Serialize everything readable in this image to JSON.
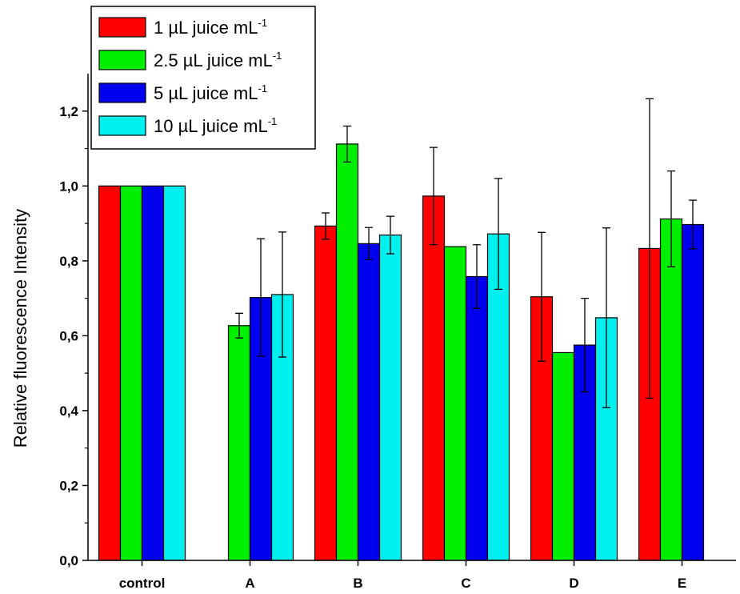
{
  "chart_data": {
    "type": "bar",
    "title": "",
    "xlabel": "",
    "ylabel": "Relative fluorescence Intensity",
    "ylim": [
      0.0,
      1.3
    ],
    "y_ticks": [
      "0,0",
      "0,2",
      "0,4",
      "0,6",
      "0,8",
      "1,0",
      "1,2"
    ],
    "categories": [
      "control",
      "A",
      "B",
      "C",
      "D",
      "E"
    ],
    "legend_position": "top-left",
    "grid": false,
    "series": [
      {
        "name": "1 µL juice mL-1",
        "color": "#ff0000",
        "values": [
          1.0,
          null,
          0.893,
          0.973,
          0.704,
          0.833
        ],
        "errors": [
          0,
          null,
          0.035,
          0.13,
          0.172,
          0.4
        ]
      },
      {
        "name": "2.5 µL juice mL-1",
        "color": "#00ee00",
        "values": [
          1.0,
          0.627,
          1.112,
          0.838,
          0.555,
          0.912
        ],
        "errors": [
          0,
          0.033,
          0.048,
          0,
          0,
          0.128
        ]
      },
      {
        "name": "5 µL juice mL-1",
        "color": "#0000ee",
        "values": [
          1.0,
          0.702,
          0.846,
          0.758,
          0.575,
          0.897
        ],
        "errors": [
          0,
          0.157,
          0.043,
          0.085,
          0.125,
          0.065
        ]
      },
      {
        "name": "10 µL juice mL-1",
        "color": "#00f0f0",
        "values": [
          1.0,
          0.71,
          0.869,
          0.872,
          0.648,
          null
        ],
        "errors": [
          0,
          0.167,
          0.05,
          0.148,
          0.24,
          null
        ]
      }
    ]
  }
}
